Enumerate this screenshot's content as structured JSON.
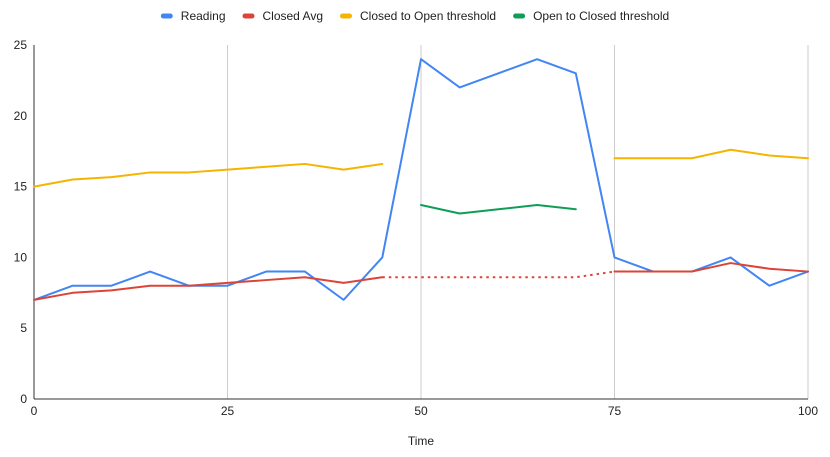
{
  "chart_data": {
    "type": "line",
    "title": "",
    "xlabel": "Time",
    "ylabel": "",
    "xlim": [
      0,
      100
    ],
    "ylim": [
      0,
      25
    ],
    "x_ticks": [
      0,
      25,
      50,
      75,
      100
    ],
    "y_ticks": [
      0,
      5,
      10,
      15,
      20,
      25
    ],
    "grid": {
      "vertical": true,
      "horizontal": false
    },
    "legend_position": "top-center",
    "series": [
      {
        "name": "Reading",
        "color": "#4285f4",
        "style": "solid",
        "points": [
          [
            0,
            7
          ],
          [
            5,
            8
          ],
          [
            10,
            8
          ],
          [
            15,
            9
          ],
          [
            20,
            8
          ],
          [
            25,
            8
          ],
          [
            30,
            9
          ],
          [
            35,
            9
          ],
          [
            40,
            7
          ],
          [
            45,
            10
          ],
          [
            50,
            24
          ],
          [
            55,
            22
          ],
          [
            60,
            23
          ],
          [
            65,
            24
          ],
          [
            70,
            23
          ],
          [
            75,
            10
          ],
          [
            80,
            9
          ],
          [
            85,
            9
          ],
          [
            90,
            10
          ],
          [
            95,
            8
          ],
          [
            100,
            9
          ]
        ]
      },
      {
        "name": "Closed Avg",
        "color": "#db4437",
        "style": "solid",
        "segments": [
          [
            [
              0,
              7
            ],
            [
              5,
              7.5
            ],
            [
              10,
              7.67
            ],
            [
              15,
              8
            ],
            [
              20,
              8
            ],
            [
              25,
              8.2
            ],
            [
              30,
              8.4
            ],
            [
              35,
              8.6
            ],
            [
              40,
              8.2
            ],
            [
              45,
              8.6
            ]
          ],
          [
            [
              75,
              9
            ],
            [
              80,
              9
            ],
            [
              85,
              9
            ],
            [
              90,
              9.6
            ],
            [
              95,
              9.2
            ],
            [
              100,
              9
            ]
          ]
        ]
      },
      {
        "name": "Closed Avg (interpolated)",
        "legend": false,
        "color": "#db4437",
        "style": "dotted",
        "points": [
          [
            45,
            8.6
          ],
          [
            50,
            8.6
          ],
          [
            55,
            8.6
          ],
          [
            60,
            8.6
          ],
          [
            65,
            8.6
          ],
          [
            70,
            8.6
          ],
          [
            75,
            9
          ]
        ]
      },
      {
        "name": "Closed to Open threshold",
        "color": "#f4b400",
        "style": "solid",
        "segments": [
          [
            [
              0,
              15
            ],
            [
              5,
              15.5
            ],
            [
              10,
              15.67
            ],
            [
              15,
              16
            ],
            [
              20,
              16
            ],
            [
              25,
              16.2
            ],
            [
              30,
              16.4
            ],
            [
              35,
              16.6
            ],
            [
              40,
              16.2
            ],
            [
              45,
              16.6
            ]
          ],
          [
            [
              75,
              17
            ],
            [
              80,
              17
            ],
            [
              85,
              17
            ],
            [
              90,
              17.6
            ],
            [
              95,
              17.2
            ],
            [
              100,
              17
            ]
          ]
        ]
      },
      {
        "name": "Open to Closed threshold",
        "color": "#0f9d58",
        "style": "solid",
        "segments": [
          [
            [
              50,
              13.7
            ],
            [
              55,
              13.1
            ],
            [
              60,
              13.4
            ],
            [
              65,
              13.7
            ],
            [
              70,
              13.4
            ]
          ]
        ]
      }
    ]
  }
}
